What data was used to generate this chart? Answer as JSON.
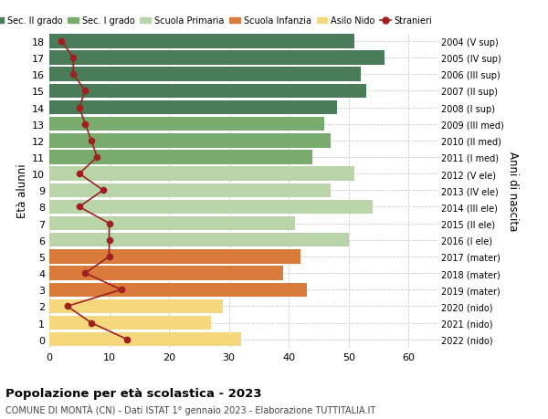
{
  "ages": [
    0,
    1,
    2,
    3,
    4,
    5,
    6,
    7,
    8,
    9,
    10,
    11,
    12,
    13,
    14,
    15,
    16,
    17,
    18
  ],
  "years": [
    "2022 (nido)",
    "2021 (nido)",
    "2020 (nido)",
    "2019 (mater)",
    "2018 (mater)",
    "2017 (mater)",
    "2016 (I ele)",
    "2015 (II ele)",
    "2014 (III ele)",
    "2013 (IV ele)",
    "2012 (V ele)",
    "2011 (I med)",
    "2010 (II med)",
    "2009 (III med)",
    "2008 (I sup)",
    "2007 (II sup)",
    "2006 (III sup)",
    "2005 (IV sup)",
    "2004 (V sup)"
  ],
  "bar_values": [
    32,
    27,
    29,
    43,
    39,
    42,
    50,
    41,
    54,
    47,
    51,
    44,
    47,
    46,
    48,
    53,
    52,
    56,
    51
  ],
  "stranieri": [
    13,
    7,
    3,
    12,
    6,
    10,
    10,
    10,
    5,
    9,
    5,
    8,
    7,
    6,
    5,
    6,
    4,
    4,
    2
  ],
  "bar_colors": [
    "#f5d87e",
    "#f5d87e",
    "#f5d87e",
    "#d97b3a",
    "#d97b3a",
    "#d97b3a",
    "#b8d4a8",
    "#b8d4a8",
    "#b8d4a8",
    "#b8d4a8",
    "#b8d4a8",
    "#7aab6e",
    "#7aab6e",
    "#7aab6e",
    "#4a7c59",
    "#4a7c59",
    "#4a7c59",
    "#4a7c59",
    "#4a7c59"
  ],
  "legend_labels": [
    "Sec. II grado",
    "Sec. I grado",
    "Scuola Primaria",
    "Scuola Infanzia",
    "Asilo Nido",
    "Stranieri"
  ],
  "legend_colors": [
    "#4a7c59",
    "#7aab6e",
    "#b8d4a8",
    "#d97b3a",
    "#f5d87e",
    "#a02020"
  ],
  "stranieri_color": "#a02020",
  "ylabel_left": "Età alunni",
  "ylabel_right": "Anni di nascita",
  "xlim": [
    0,
    65
  ],
  "xticks": [
    0,
    10,
    20,
    30,
    40,
    50,
    60
  ],
  "title": "Popolazione per età scolastica - 2023",
  "subtitle": "COMUNE DI MONTÀ (CN) - Dati ISTAT 1° gennaio 2023 - Elaborazione TUTTITALIA.IT",
  "bg_color": "#ffffff",
  "grid_color": "#cccccc"
}
